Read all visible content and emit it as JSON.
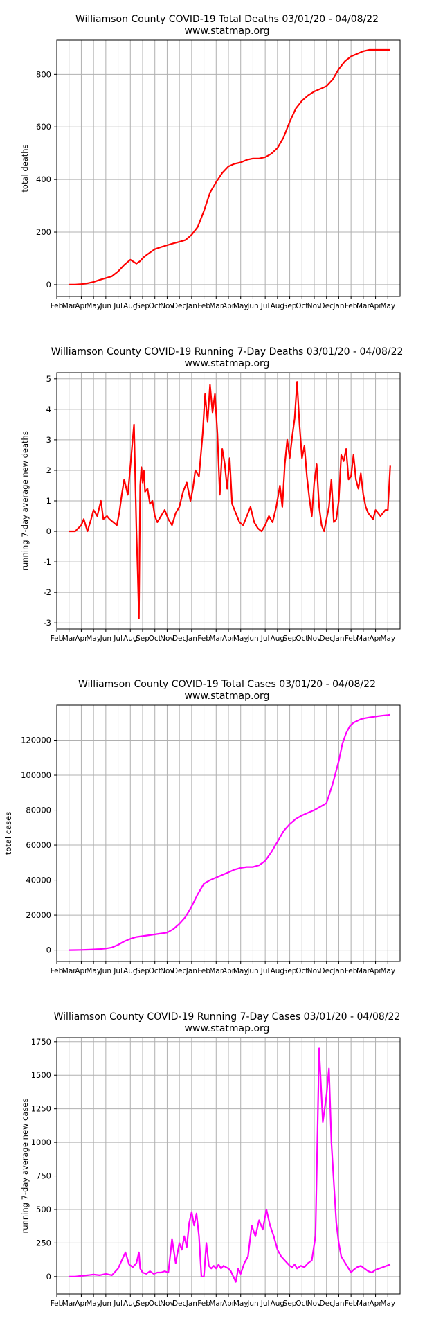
{
  "source": "www.statmap.org",
  "x_ticks": [
    "Feb",
    "Mar",
    "Apr",
    "May",
    "Jun",
    "Jul",
    "Aug",
    "Sep",
    "Oct",
    "Nov",
    "Dec",
    "Jan",
    "Feb",
    "Mar",
    "Apr",
    "May",
    "Jun",
    "Jul",
    "Aug",
    "Sep",
    "Oct",
    "Nov",
    "Dec",
    "Jan",
    "Feb",
    "Mar",
    "Apr",
    "May"
  ],
  "chart_data": [
    {
      "type": "line",
      "title": "Williamson County COVID-19 Total Deaths 03/01/20 - 04/08/22",
      "subtitle": "www.statmap.org",
      "xlabel": "",
      "ylabel": "total deaths",
      "ylim": [
        -45,
        930
      ],
      "yticks": [
        0,
        200,
        400,
        600,
        800
      ],
      "xlim": [
        -1,
        27
      ],
      "grid": true,
      "color": "#ff0000",
      "x": [
        0,
        0.5,
        1,
        1.5,
        2,
        2.5,
        3,
        3.5,
        4,
        4.5,
        5,
        5.5,
        5.8,
        6,
        6.1,
        6.3,
        6.6,
        7,
        7.5,
        8,
        8.5,
        9,
        9.5,
        10,
        10.5,
        11,
        11.5,
        12,
        12.5,
        13,
        13.5,
        14,
        14.5,
        15,
        15.5,
        16,
        16.5,
        17,
        17.5,
        18,
        18.5,
        19,
        19.5,
        20,
        20.5,
        21,
        21.5,
        22,
        22.5,
        23,
        23.5,
        24,
        24.5,
        25,
        25.5,
        26,
        26.2
      ],
      "values": [
        0,
        0,
        2,
        5,
        10,
        18,
        25,
        32,
        50,
        75,
        95,
        80,
        90,
        100,
        105,
        112,
        122,
        135,
        143,
        150,
        157,
        163,
        170,
        190,
        220,
        280,
        350,
        390,
        425,
        450,
        460,
        465,
        475,
        480,
        480,
        485,
        498,
        520,
        560,
        620,
        670,
        700,
        720,
        735,
        745,
        755,
        780,
        820,
        850,
        868,
        878,
        888,
        893,
        893,
        893,
        893,
        893
      ]
    },
    {
      "type": "line",
      "title": "Williamson County COVID-19 Running 7-Day Deaths 03/01/20 - 04/08/22",
      "subtitle": "www.statmap.org",
      "xlabel": "",
      "ylabel": "running 7-day average new deaths",
      "ylim": [
        -3.2,
        5.2
      ],
      "yticks": [
        -3,
        -2,
        -1,
        0,
        1,
        2,
        3,
        4,
        5
      ],
      "xlim": [
        -1,
        27
      ],
      "grid": true,
      "color": "#ff0000",
      "x": [
        0,
        0.5,
        1,
        1.2,
        1.5,
        1.8,
        2,
        2.3,
        2.6,
        2.8,
        3.1,
        3.3,
        3.6,
        3.9,
        4.1,
        4.3,
        4.5,
        4.8,
        5.1,
        5.3,
        5.5,
        5.6,
        5.7,
        5.8,
        5.9,
        6,
        6.1,
        6.2,
        6.4,
        6.6,
        6.8,
        7,
        7.2,
        7.5,
        7.8,
        8.1,
        8.4,
        8.7,
        9,
        9.3,
        9.6,
        9.9,
        10.1,
        10.3,
        10.6,
        10.9,
        11.1,
        11.3,
        11.5,
        11.7,
        11.9,
        12.1,
        12.3,
        12.5,
        12.7,
        12.9,
        13.1,
        13.3,
        13.6,
        13.9,
        14.2,
        14.5,
        14.8,
        15.1,
        15.4,
        15.7,
        16,
        16.3,
        16.6,
        16.9,
        17.2,
        17.4,
        17.6,
        17.8,
        18,
        18.2,
        18.4,
        18.6,
        18.8,
        19,
        19.2,
        19.4,
        19.6,
        19.8,
        20,
        20.2,
        20.4,
        20.6,
        20.8,
        21,
        21.2,
        21.4,
        21.6,
        21.8,
        22,
        22.2,
        22.4,
        22.6,
        22.8,
        23,
        23.2,
        23.4,
        23.6,
        23.8,
        24,
        24.2,
        24.4,
        24.6,
        24.8,
        25,
        25.2,
        25.4,
        25.6,
        25.8,
        26,
        26.2
      ],
      "values": [
        0,
        0,
        0.2,
        0.4,
        0,
        0.4,
        0.7,
        0.5,
        1,
        0.4,
        0.5,
        0.4,
        0.3,
        0.2,
        0.6,
        1.2,
        1.7,
        1.2,
        2.6,
        3.5,
        0,
        -1.3,
        -2.85,
        1.5,
        2.1,
        1.6,
        2,
        1.3,
        1.4,
        0.9,
        1,
        0.5,
        0.3,
        0.5,
        0.7,
        0.4,
        0.2,
        0.6,
        0.8,
        1.3,
        1.6,
        1,
        1.4,
        2,
        1.8,
        3.2,
        4.5,
        3.6,
        4.8,
        3.9,
        4.5,
        3.2,
        1.2,
        2.7,
        2.2,
        1.4,
        2.4,
        0.9,
        0.6,
        0.3,
        0.2,
        0.5,
        0.8,
        0.3,
        0.1,
        0,
        0.2,
        0.5,
        0.3,
        0.8,
        1.5,
        0.8,
        2.2,
        3,
        2.4,
        3.1,
        3.7,
        4.9,
        3.5,
        2.4,
        2.8,
        1.8,
        1.1,
        0.5,
        1.6,
        2.2,
        0.8,
        0.2,
        0,
        0.4,
        0.8,
        1.7,
        0.3,
        0.4,
        1,
        2.5,
        2.3,
        2.7,
        1.7,
        1.8,
        2.5,
        1.7,
        1.4,
        1.9,
        1.2,
        0.8,
        0.6,
        0.5,
        0.4,
        0.7,
        0.6,
        0.5,
        0.6,
        0.7,
        0.7,
        2.15
      ],
      "note_marker_y_text": ""
    },
    {
      "type": "line",
      "title": "Williamson County COVID-19 Total Cases 03/01/20 - 04/08/22",
      "subtitle": "www.statmap.org",
      "xlabel": "",
      "ylabel": "total cases",
      "ylim": [
        -6500,
        140000
      ],
      "yticks": [
        0,
        20000,
        40000,
        60000,
        80000,
        100000,
        120000
      ],
      "xlim": [
        -1,
        27
      ],
      "grid": true,
      "color": "#ff00ff",
      "x": [
        0,
        0.5,
        1,
        1.5,
        2,
        2.5,
        3,
        3.5,
        4,
        4.5,
        5,
        5.5,
        6,
        6.5,
        7,
        7.5,
        8,
        8.5,
        9,
        9.5,
        10,
        10.5,
        11,
        11.5,
        12,
        12.5,
        13,
        13.5,
        14,
        14.5,
        15,
        15.5,
        16,
        16.5,
        17,
        17.5,
        18,
        18.5,
        19,
        19.5,
        20,
        20.5,
        21,
        21.5,
        22,
        22.3,
        22.6,
        22.9,
        23.2,
        23.5,
        23.8,
        24.1,
        24.5,
        25,
        25.5,
        26,
        26.2
      ],
      "values": [
        0,
        50,
        100,
        250,
        400,
        600,
        900,
        1500,
        3000,
        5000,
        6500,
        7500,
        8000,
        8500,
        9000,
        9500,
        10000,
        12000,
        15000,
        19000,
        25000,
        32000,
        38000,
        40000,
        41500,
        43000,
        44500,
        46000,
        47000,
        47500,
        47500,
        48500,
        51000,
        56000,
        62000,
        68000,
        72000,
        75000,
        77000,
        78500,
        80000,
        82000,
        84000,
        95000,
        108000,
        118000,
        124000,
        128000,
        130000,
        131000,
        132000,
        132500,
        133000,
        133500,
        134000,
        134300,
        134500
      ]
    },
    {
      "type": "line",
      "title": "Williamson County COVID-19 Running 7-Day Cases 03/01/20 - 04/08/22",
      "subtitle": "www.statmap.org",
      "xlabel": "",
      "ylabel": "running 7-day average new cases",
      "ylim": [
        -130,
        1780
      ],
      "yticks": [
        0,
        250,
        500,
        750,
        1000,
        1250,
        1500,
        1750
      ],
      "xlim": [
        -1,
        27
      ],
      "grid": true,
      "color": "#ff00ff",
      "x": [
        0,
        0.5,
        1,
        1.5,
        2,
        2.5,
        3,
        3.5,
        4,
        4.3,
        4.6,
        4.9,
        5.2,
        5.5,
        5.7,
        5.8,
        6,
        6.3,
        6.6,
        6.9,
        7.2,
        7.5,
        7.8,
        8.1,
        8.4,
        8.7,
        9,
        9.2,
        9.4,
        9.6,
        9.8,
        10,
        10.2,
        10.4,
        10.6,
        10.8,
        11,
        11.2,
        11.4,
        11.6,
        11.8,
        12,
        12.2,
        12.4,
        12.6,
        12.8,
        13,
        13.2,
        13.4,
        13.6,
        13.8,
        14,
        14.3,
        14.6,
        14.9,
        15.2,
        15.5,
        15.8,
        16.1,
        16.4,
        16.7,
        17,
        17.3,
        17.6,
        17.8,
        18,
        18.2,
        18.4,
        18.6,
        18.9,
        19.2,
        19.5,
        19.8,
        20.1,
        20.4,
        20.7,
        21,
        21.2,
        21.4,
        21.6,
        21.8,
        22,
        22.2,
        22.4,
        22.6,
        22.8,
        23,
        23.2,
        23.5,
        23.8,
        24.1,
        24.4,
        24.7,
        25,
        25.3,
        25.6,
        25.9,
        26.2
      ],
      "values": [
        0,
        0,
        5,
        10,
        15,
        10,
        20,
        10,
        60,
        120,
        180,
        90,
        70,
        100,
        180,
        60,
        30,
        20,
        40,
        20,
        30,
        30,
        40,
        30,
        280,
        100,
        250,
        200,
        300,
        220,
        400,
        480,
        380,
        470,
        300,
        0,
        0,
        250,
        80,
        60,
        80,
        60,
        90,
        60,
        80,
        70,
        60,
        40,
        0,
        -40,
        60,
        20,
        100,
        150,
        380,
        300,
        420,
        350,
        500,
        380,
        300,
        200,
        150,
        120,
        100,
        80,
        70,
        90,
        60,
        80,
        70,
        100,
        120,
        300,
        1700,
        1150,
        1350,
        1550,
        1000,
        700,
        400,
        250,
        150,
        120,
        90,
        60,
        30,
        50,
        70,
        80,
        60,
        40,
        30,
        50,
        60,
        70,
        80,
        90
      ]
    }
  ]
}
